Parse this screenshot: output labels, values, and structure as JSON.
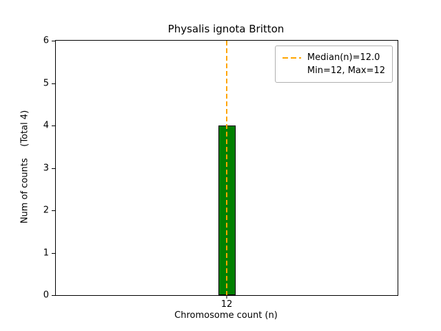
{
  "chart_data": {
    "type": "bar",
    "title": "Physalis ignota Britton",
    "xlabel": "Chromosome count (n)",
    "ylabel": "Num of counts    (Total 4)",
    "categories": [
      "12"
    ],
    "values": [
      4
    ],
    "ylim": [
      0,
      6
    ],
    "yticks": [
      0,
      1,
      2,
      3,
      4,
      5,
      6
    ],
    "bar_color": "#008000",
    "bar_edge_color": "#000000",
    "median_line": {
      "x": "12",
      "value": 12.0,
      "color": "#ffa500",
      "style": "dashed"
    },
    "min": 12,
    "max": 12,
    "total_counts": 4,
    "legend": [
      "Median(n)=12.0",
      "Min=12, Max=12"
    ],
    "legend_position": "upper right",
    "grid": false
  }
}
